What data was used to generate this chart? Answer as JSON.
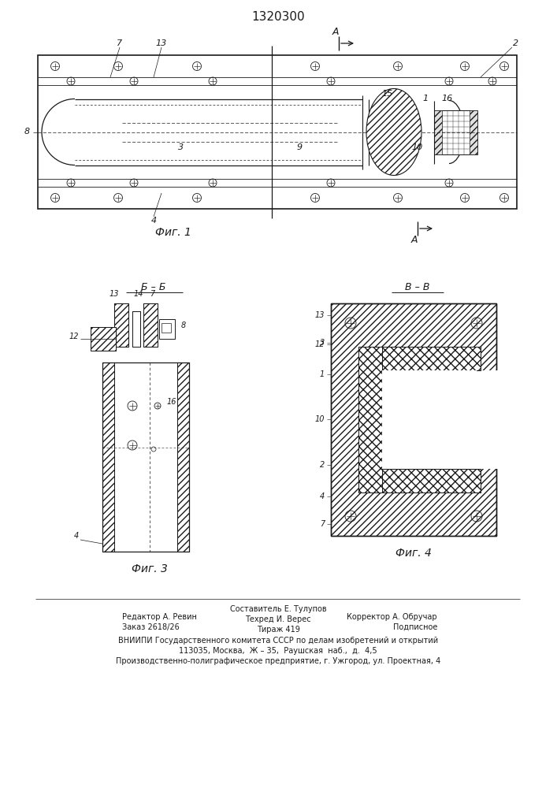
{
  "title": "1320300",
  "fig1_caption": "Фиг. 1",
  "fig3_caption": "Фиг. 3",
  "fig4_caption": "Фиг. 4",
  "section_bb": "Б – Б",
  "section_vv": "В – В",
  "label_a": "А",
  "footer_col1_line1": "Редактор А. Ревин",
  "footer_col1_line2": "Заказ 2618/26",
  "footer_col2_line1": "Составитель Е. Тулупов",
  "footer_col2_line2": "Техред И. Верес",
  "footer_col2_line3": "Тираж 419",
  "footer_col3_line1": "Корректор А. Обручар",
  "footer_col3_line2": "Подписное",
  "footer_line4": "ВНИИПИ Государственного комитета СССР по делам изобретений и открытий",
  "footer_line5": "113035, Москва,  Ж – 35,  Раушская  наб.,  д.  4,5",
  "footer_line6": "Производственно-полиграфическое предприятие, г. Ужгород, ул. Проектная, 4",
  "bg_color": "#ffffff",
  "line_color": "#1a1a1a"
}
